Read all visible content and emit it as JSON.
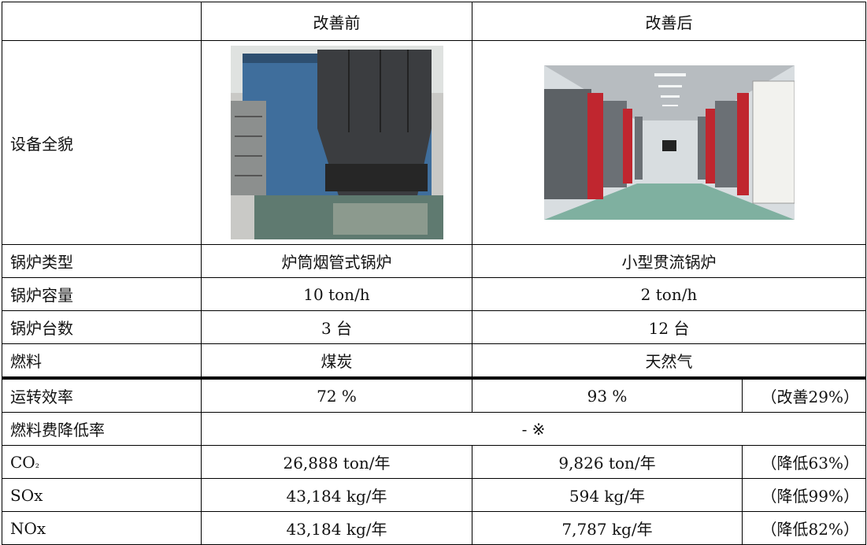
{
  "header": {
    "before": "改善前",
    "after": "改善后"
  },
  "overview_label": "设备全貌",
  "rows": [
    [
      "锅炉类型",
      "炉筒烟管式锅炉",
      "小型贯流锅炉"
    ],
    [
      "锅炉容量",
      "10 ton/h",
      "2 ton/h"
    ],
    [
      "锅炉台数",
      "3 台",
      "12 台"
    ],
    [
      "燃料",
      "煤炭",
      "天然气"
    ],
    [
      "运转效率",
      "72 %",
      "93 %",
      "（改善29%）"
    ],
    [
      "燃料费降低率",
      "- ※"
    ],
    [
      "CO₂",
      "26,888 ton/年",
      "9,826 ton/年",
      "（降低63%）"
    ],
    [
      "SOx",
      "43,184 kg/年",
      "594 kg/年",
      "（降低99%）"
    ],
    [
      "NOx",
      "43,184 kg/年",
      "7,787 kg/年",
      "（降低82%）"
    ]
  ]
}
